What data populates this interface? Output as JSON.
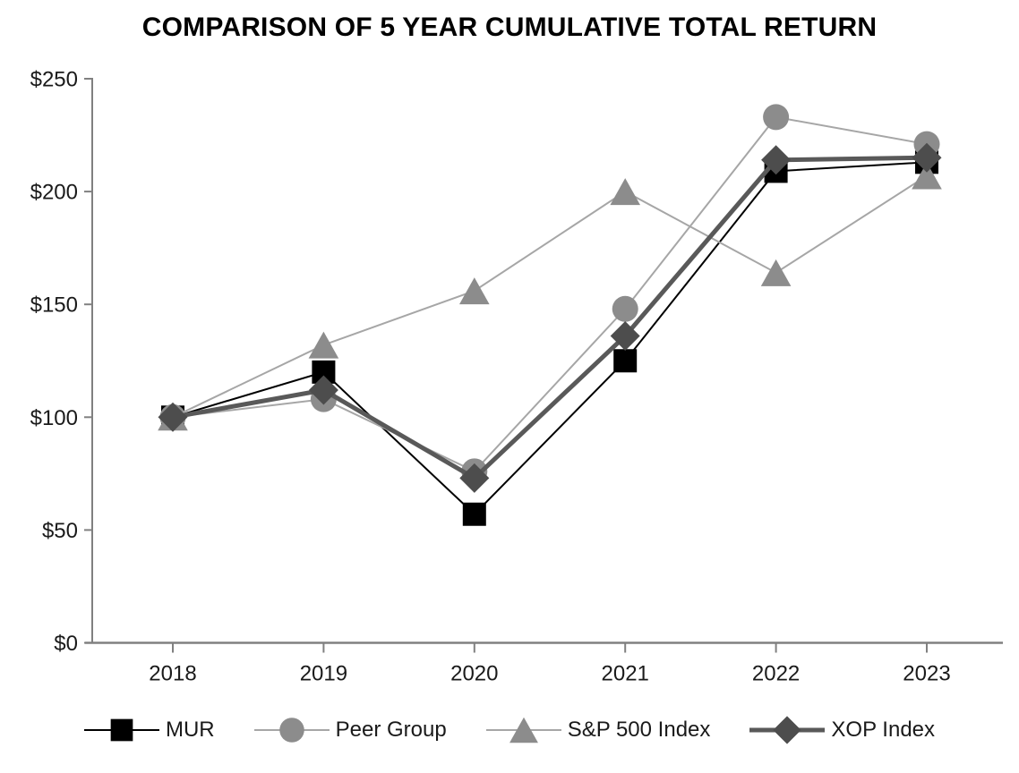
{
  "chart_data": {
    "type": "line",
    "title": "COMPARISON OF 5 YEAR CUMULATIVE TOTAL RETURN",
    "categories": [
      "2018",
      "2019",
      "2020",
      "2021",
      "2022",
      "2023"
    ],
    "series": [
      {
        "name": "MUR",
        "marker": "square",
        "marker_color": "#000000",
        "line_color": "#000000",
        "line_width": 2,
        "marker_size": 26,
        "values": [
          100,
          120,
          57,
          125,
          209,
          213
        ]
      },
      {
        "name": "Peer Group",
        "marker": "circle",
        "marker_color": "#8c8c8c",
        "line_color": "#a6a6a6",
        "line_width": 2,
        "marker_size": 29,
        "values": [
          100,
          108,
          76,
          148,
          233,
          221
        ]
      },
      {
        "name": "S&P 500 Index",
        "marker": "triangle",
        "marker_color": "#8c8c8c",
        "line_color": "#a6a6a6",
        "line_width": 2,
        "marker_size": 30,
        "values": [
          100,
          132,
          156,
          200,
          164,
          207
        ]
      },
      {
        "name": "XOP Index",
        "marker": "diamond",
        "marker_color": "#4d4d4d",
        "line_color": "#595959",
        "line_width": 5,
        "marker_size": 30,
        "values": [
          100,
          112,
          73,
          136,
          214,
          215
        ]
      }
    ],
    "ylim": [
      0,
      250
    ],
    "y_ticks": [
      {
        "value": 0,
        "label": "$0"
      },
      {
        "value": 50,
        "label": "$50"
      },
      {
        "value": 100,
        "label": "$100"
      },
      {
        "value": 150,
        "label": "$150"
      },
      {
        "value": 200,
        "label": "$200"
      },
      {
        "value": 250,
        "label": "$250"
      }
    ],
    "xlabel": "",
    "ylabel": "",
    "grid": false,
    "legend_position": "bottom",
    "axis_color": "#808080",
    "tick_label_color": "#1a1a1a",
    "background_color": "#ffffff"
  }
}
